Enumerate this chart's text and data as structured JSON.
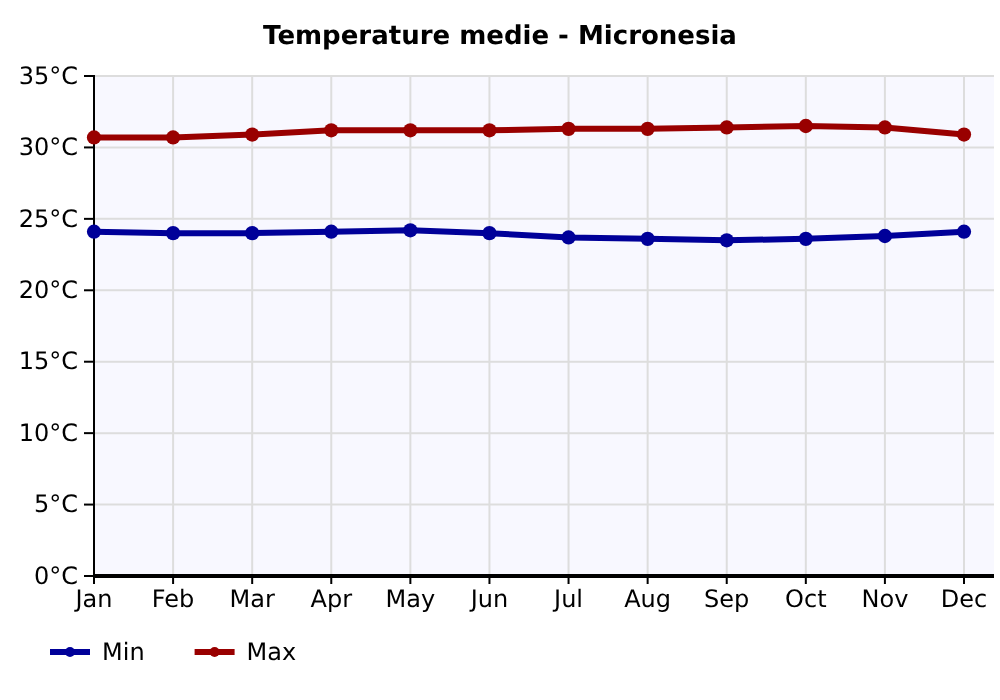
{
  "chart_data": {
    "type": "line",
    "title": "Temperature medie - Micronesia",
    "categories": [
      "Jan",
      "Feb",
      "Mar",
      "Apr",
      "May",
      "Jun",
      "Jul",
      "Aug",
      "Sep",
      "Oct",
      "Nov",
      "Dec"
    ],
    "series": [
      {
        "name": "Min",
        "color": "#000099",
        "values": [
          24.1,
          24.0,
          24.0,
          24.1,
          24.2,
          24.0,
          23.7,
          23.6,
          23.5,
          23.6,
          23.8,
          24.1
        ]
      },
      {
        "name": "Max",
        "color": "#990000",
        "values": [
          30.7,
          30.7,
          30.9,
          31.2,
          31.2,
          31.2,
          31.3,
          31.3,
          31.4,
          31.5,
          31.4,
          30.9
        ]
      }
    ],
    "ylim": [
      0,
      35
    ],
    "yticks": [
      {
        "value": 0,
        "label": "0°C"
      },
      {
        "value": 5,
        "label": "5°C"
      },
      {
        "value": 10,
        "label": "10°C"
      },
      {
        "value": 15,
        "label": "15°C"
      },
      {
        "value": 20,
        "label": "20°C"
      },
      {
        "value": 25,
        "label": "25°C"
      },
      {
        "value": 30,
        "label": "30°C"
      },
      {
        "value": 35,
        "label": "35°C"
      }
    ],
    "grid": true,
    "legend": "bottom left",
    "marker": "circle",
    "line_style": "solid"
  }
}
